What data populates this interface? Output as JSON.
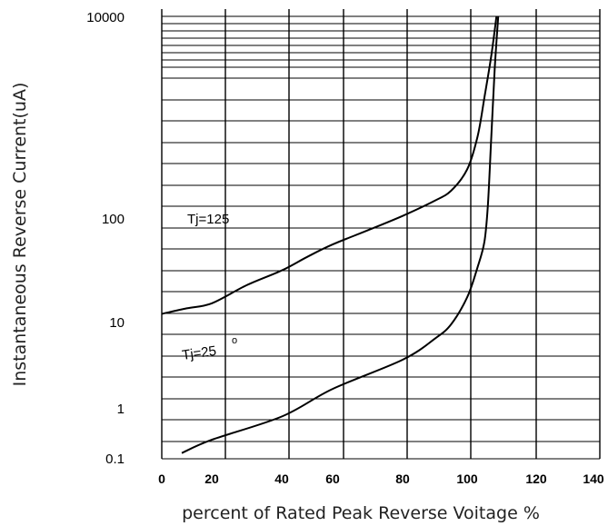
{
  "chart_data": {
    "type": "line",
    "xlabel": "percent of Rated Peak Reverse Voitage %",
    "ylabel": "Instantaneous Reverse Current(uA)",
    "x_ticks": [
      "0",
      "20",
      "40",
      "60",
      "80",
      "100",
      "120",
      "140"
    ],
    "y_ticks": [
      "10000",
      "100",
      "10",
      "1",
      "0.1"
    ],
    "xlim": [
      0,
      140
    ],
    "y_scale": "log",
    "grid": true,
    "series": [
      {
        "name": "Tj=125",
        "points": [
          [
            0,
            12
          ],
          [
            10,
            13.5
          ],
          [
            20,
            15
          ],
          [
            30,
            22
          ],
          [
            40,
            30
          ],
          [
            50,
            40
          ],
          [
            60,
            52
          ],
          [
            70,
            70
          ],
          [
            80,
            95
          ],
          [
            90,
            135
          ],
          [
            95,
            170
          ],
          [
            100,
            280
          ],
          [
            103,
            600
          ],
          [
            105,
            1500
          ],
          [
            107,
            4000
          ],
          [
            108.5,
            10000
          ]
        ]
      },
      {
        "name": "Tj=25",
        "points": [
          [
            8,
            0.13
          ],
          [
            20,
            0.24
          ],
          [
            40,
            0.7
          ],
          [
            60,
            1.7
          ],
          [
            80,
            3.7
          ],
          [
            90,
            6.5
          ],
          [
            95,
            9.5
          ],
          [
            100,
            17
          ],
          [
            103,
            32
          ],
          [
            105,
            55
          ],
          [
            106,
            120
          ],
          [
            107,
            600
          ],
          [
            108,
            3000
          ],
          [
            109,
            10000
          ]
        ]
      }
    ],
    "annotations": [
      {
        "text": "Tj=125",
        "sup": ""
      },
      {
        "text": "Tj=25",
        "sup": "o"
      }
    ]
  }
}
